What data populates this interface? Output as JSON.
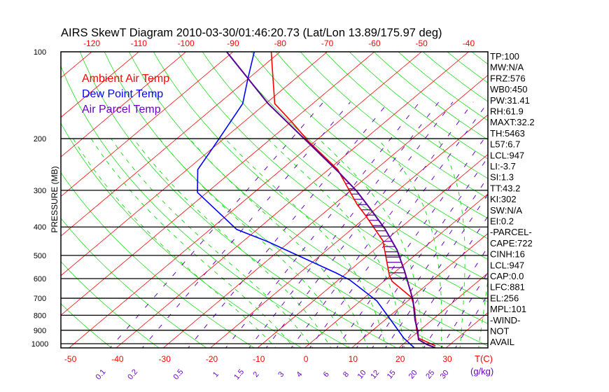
{
  "chart_data": {
    "type": "line",
    "subtype": "skew-t log-p",
    "title": "AIRS SkewT Diagram 2010-03-30/01:46:20.73 (Lat/Lon 13.89/175.97 deg)",
    "ylabel": "PRESSURE (MB)",
    "xlabel": "T(C)",
    "mixing_ratio_label": "(g/kg)",
    "ylim": [
      1033,
      100
    ],
    "y_ticks": [
      100,
      200,
      300,
      400,
      500,
      600,
      700,
      800,
      900,
      1000
    ],
    "x_ticks_bottom": [
      -50,
      -40,
      -30,
      -20,
      -10,
      0,
      10,
      20,
      30
    ],
    "x_ticks_top": [
      -120,
      -110,
      -100,
      -90,
      -80,
      -70,
      -60,
      -50,
      -40
    ],
    "mixing_ratio_ticks": [
      "0.1",
      "0.2",
      "0.5",
      "1",
      "1.5",
      "2",
      "3",
      "4",
      "6",
      "8",
      "10",
      "12",
      "15",
      "20",
      "25",
      "30"
    ],
    "legend": [
      "Ambient Air Temp",
      "Dew Point Temp",
      "Air Parcel Temp"
    ],
    "colors": {
      "temp": "#ff0000",
      "dew": "#0000ff",
      "parcel": "#5a0096",
      "isotherm": "#ff0000",
      "dry_adiabat": "#22dd22",
      "moist_adiabat": "#22dd22",
      "mixing_ratio": "#6a00c8",
      "grid": "#000000"
    },
    "series": [
      {
        "name": "Ambient Air Temp",
        "p": [
          101,
          115,
          134,
          152,
          176,
          204,
          255,
          335,
          364,
          446,
          585,
          613,
          696,
          756,
          891,
          957,
          1017
        ],
        "T": [
          -81.9,
          -77.5,
          -72.3,
          -68.0,
          -59.6,
          -51.4,
          -38.0,
          -25.1,
          -20.7,
          -10.4,
          -0.3,
          1.8,
          10.0,
          13.3,
          19.0,
          21.7,
          27.3
        ]
      },
      {
        "name": "Dew Point Temp",
        "p": [
          101,
          125,
          152,
          204,
          255,
          305,
          408,
          448,
          574,
          607,
          641,
          715,
          798,
          857,
          957,
          1033
        ],
        "T": [
          -85.5,
          -80.0,
          -74.8,
          -70.7,
          -67.7,
          -62.0,
          -44.3,
          -34.8,
          -12.2,
          -7.5,
          -3.8,
          3.5,
          9.2,
          12.9,
          18.6,
          23.3
        ]
      },
      {
        "name": "Air Parcel Temp",
        "p": [
          101,
          152,
          259,
          302,
          350,
          406,
          479,
          565,
          666,
          715,
          830,
          906,
          968,
          1006,
          1033
        ],
        "T": [
          -91.4,
          -69.4,
          -37.4,
          -28.5,
          -20.7,
          -13.0,
          -5.1,
          1.8,
          8.4,
          11.2,
          16.4,
          19.8,
          22.1,
          25.1,
          27.8
        ]
      }
    ]
  },
  "indices": [
    "TP:100",
    "MW:N/A",
    "FRZ:576",
    "WB0:450",
    "PW:31.41",
    "RH:61.9",
    "MAXT:32.2",
    "TH:5463",
    "L57:6.7",
    "LCL:947",
    "LI:-3.7",
    "SI:1.3",
    "TT:43.2",
    "KI:302",
    "SW:N/A",
    "EI:0.2",
    "-PARCEL-",
    "CAPE:722",
    "CINH:16",
    "LCL:947",
    "CAP:0.0",
    "LFC:881",
    "EL:256",
    "MPL:101",
    "-WIND-",
    "NOT",
    "AVAIL"
  ]
}
